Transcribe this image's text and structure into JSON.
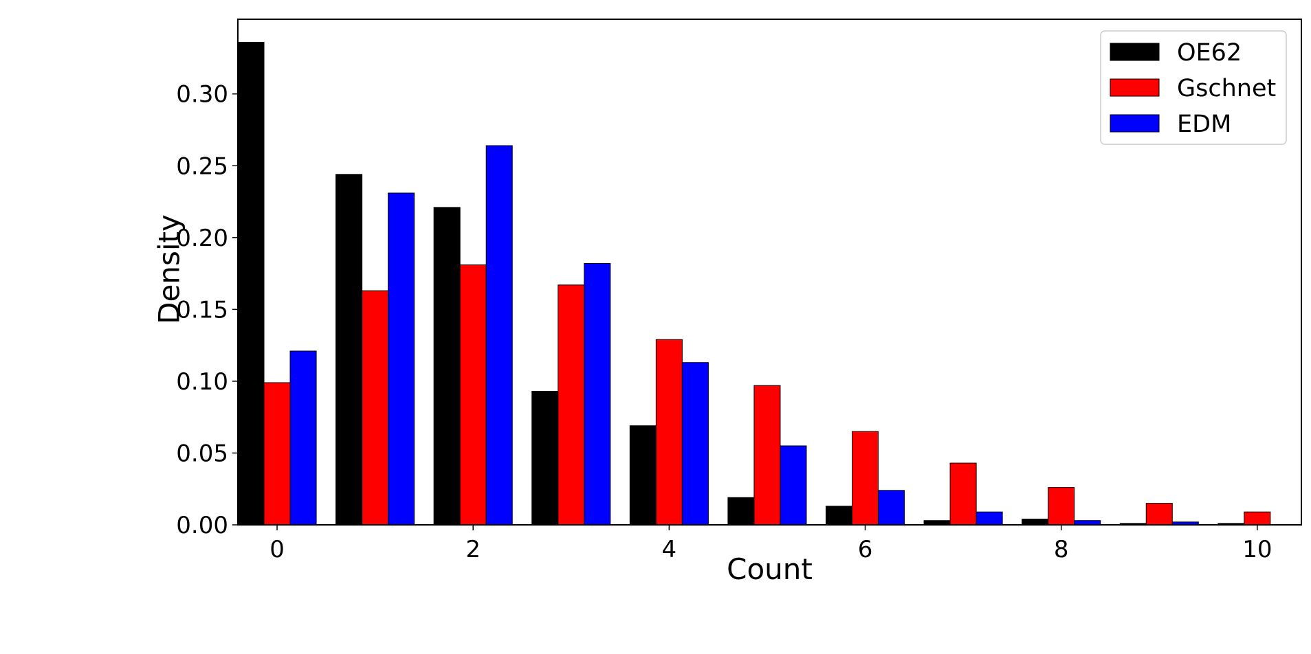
{
  "chart_data": {
    "type": "bar",
    "title": "",
    "xlabel": "Count",
    "ylabel": "Density",
    "categories": [
      0,
      1,
      2,
      3,
      4,
      5,
      6,
      7,
      8,
      9,
      10
    ],
    "series": [
      {
        "name": "OE62",
        "color": "#000000",
        "values": [
          0.336,
          0.244,
          0.221,
          0.093,
          0.069,
          0.019,
          0.013,
          0.003,
          0.004,
          0.001,
          0.001
        ]
      },
      {
        "name": "Gschnet",
        "color": "#ff0000",
        "values": [
          0.099,
          0.163,
          0.181,
          0.167,
          0.129,
          0.097,
          0.065,
          0.043,
          0.026,
          0.015,
          0.009
        ]
      },
      {
        "name": "EDM",
        "color": "#0000ff",
        "values": [
          0.121,
          0.231,
          0.264,
          0.182,
          0.113,
          0.055,
          0.024,
          0.009,
          0.003,
          0.002,
          0.0
        ]
      }
    ],
    "xlim": [
      -0.4,
      10.45
    ],
    "ylim": [
      0,
      0.352
    ],
    "xticks": [
      0,
      2,
      4,
      6,
      8,
      10
    ],
    "xtick_labels": [
      "0",
      "2",
      "4",
      "6",
      "8",
      "10"
    ],
    "yticks": [
      0.0,
      0.05,
      0.1,
      0.15,
      0.2,
      0.25,
      0.3
    ],
    "ytick_labels": [
      "0.00",
      "0.05",
      "0.10",
      "0.15",
      "0.20",
      "0.25",
      "0.30"
    ],
    "grid": false,
    "legend_position": "top-right",
    "bar_edge_color": "#000000"
  }
}
